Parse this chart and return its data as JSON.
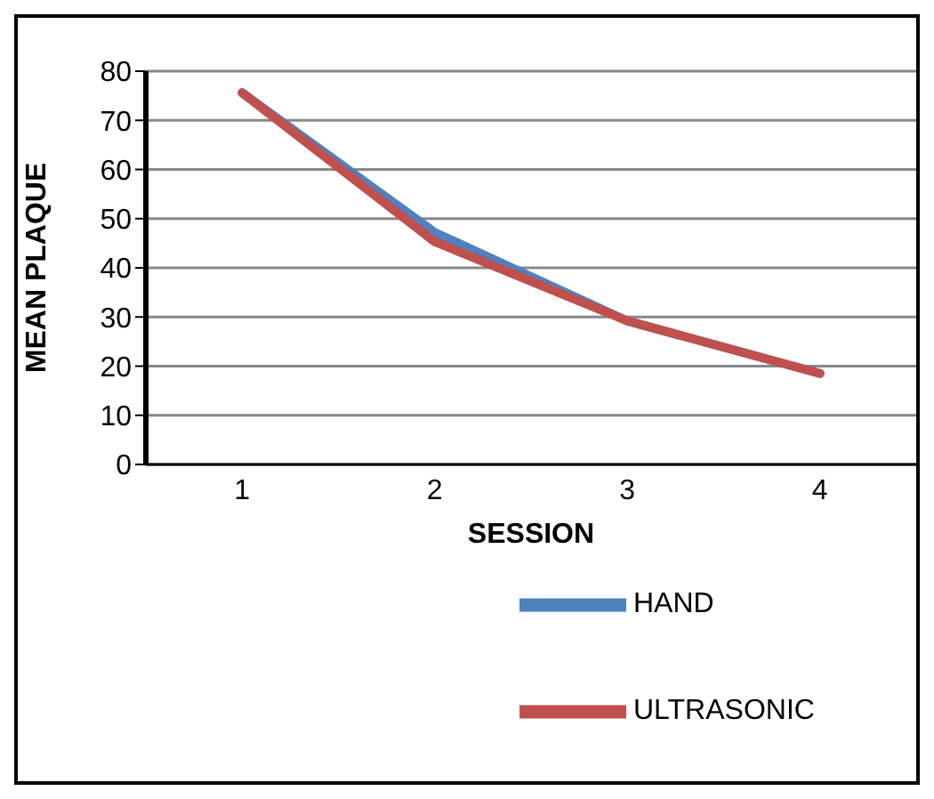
{
  "chart_data": {
    "type": "line",
    "xlabel": "SESSION",
    "ylabel": "MEAN PLAQUE",
    "categories": [
      "1",
      "2",
      "3",
      "4"
    ],
    "series": [
      {
        "name": "HAND",
        "color": "#4f81bd",
        "values": [
          75.6,
          47.2,
          29.2,
          18.5
        ]
      },
      {
        "name": "ULTRASONIC",
        "color": "#c0504d",
        "values": [
          75.6,
          45.3,
          29.2,
          18.5
        ]
      }
    ],
    "ylim": [
      0,
      80
    ],
    "yticks": [
      0,
      10,
      20,
      30,
      40,
      50,
      60,
      70,
      80
    ],
    "grid": "y",
    "legend": "bottom right",
    "marker": "none",
    "line_style": "solid"
  }
}
